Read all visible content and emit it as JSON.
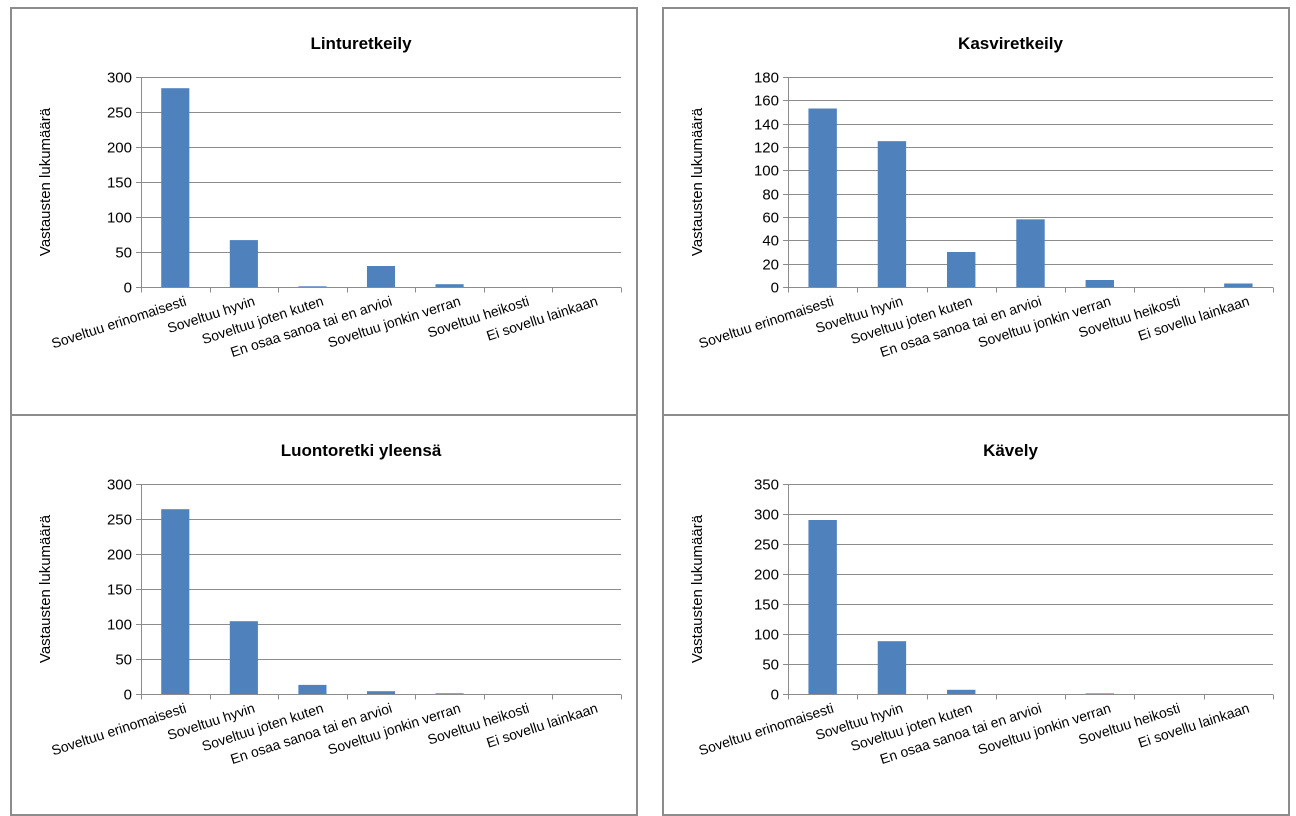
{
  "colors": {
    "bar": "#4F81BD",
    "bar_edge": "#3b6aa3",
    "grid": "#8c8c8c",
    "axis": "#8c8c8c",
    "border": "#8c8c8c"
  },
  "chart_data": [
    {
      "type": "bar",
      "title": "Linturetkeily",
      "ylabel": "Vastausten lukumäärä",
      "xlabel": "",
      "categories": [
        "Soveltuu erinomaisesti",
        "Soveltuu hyvin",
        "Soveltuu joten kuten",
        "En osaa sanoa tai en arvioi",
        "Soveltuu jonkin verran",
        "Soveltuu heikosti",
        "Ei sovellu lainkaan"
      ],
      "values": [
        284,
        67,
        1,
        30,
        4,
        0,
        0
      ],
      "ylim": [
        0,
        300
      ],
      "yticks": [
        0,
        50,
        100,
        150,
        200,
        250,
        300
      ],
      "grid": true
    },
    {
      "type": "bar",
      "title": "Kasviretkeily",
      "ylabel": "Vastausten lukumäärä",
      "xlabel": "",
      "categories": [
        "Soveltuu erinomaisesti",
        "Soveltuu hyvin",
        "Soveltuu joten kuten",
        "En osaa sanoa tai en arvioi",
        "Soveltuu jonkin verran",
        "Soveltuu heikosti",
        "Ei sovellu lainkaan"
      ],
      "values": [
        153,
        125,
        30,
        58,
        6,
        0,
        3
      ],
      "ylim": [
        0,
        180
      ],
      "yticks": [
        0,
        20,
        40,
        60,
        80,
        100,
        120,
        140,
        160,
        180
      ],
      "grid": true
    },
    {
      "type": "bar",
      "title": "Luontoretki yleensä",
      "ylabel": "Vastausten lukumäärä",
      "xlabel": "",
      "categories": [
        "Soveltuu erinomaisesti",
        "Soveltuu hyvin",
        "Soveltuu joten kuten",
        "En osaa sanoa tai en arvioi",
        "Soveltuu jonkin verran",
        "Soveltuu heikosti",
        "Ei sovellu lainkaan"
      ],
      "values": [
        264,
        104,
        13,
        4,
        1,
        0,
        0
      ],
      "ylim": [
        0,
        300
      ],
      "yticks": [
        0,
        50,
        100,
        150,
        200,
        250,
        300
      ],
      "grid": true
    },
    {
      "type": "bar",
      "title": "Kävely",
      "ylabel": "Vastausten lukumäärä",
      "xlabel": "",
      "categories": [
        "Soveltuu erinomaisesti",
        "Soveltuu hyvin",
        "Soveltuu joten kuten",
        "En osaa sanoa tai en arvioi",
        "Soveltuu jonkin verran",
        "Soveltuu heikosti",
        "Ei sovellu lainkaan"
      ],
      "values": [
        290,
        88,
        7,
        0,
        1,
        0,
        0
      ],
      "ylim": [
        0,
        350
      ],
      "yticks": [
        0,
        50,
        100,
        150,
        200,
        250,
        300,
        350
      ],
      "grid": true
    }
  ]
}
